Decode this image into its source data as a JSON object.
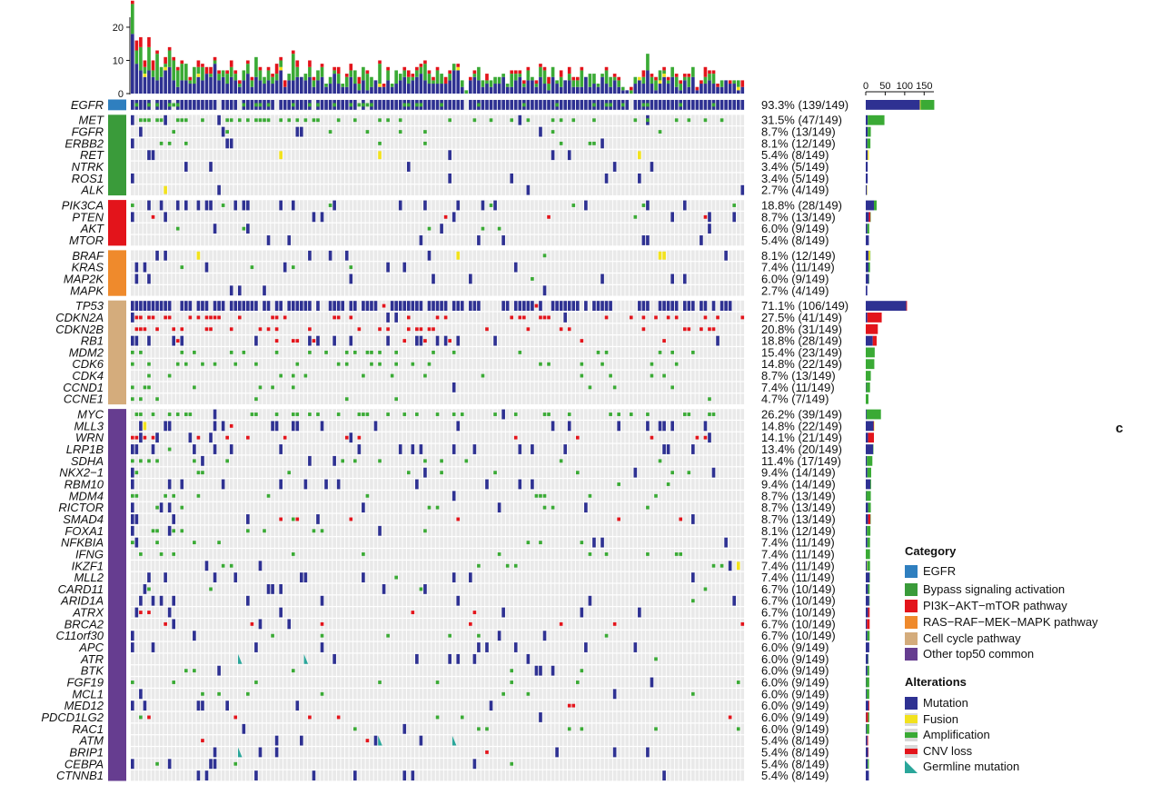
{
  "panel_letter": "c",
  "colors": {
    "mutation": "#2e3192",
    "fusion": "#f2e21d",
    "amplification": "#3aaa35",
    "cnv_loss": "#e3141b",
    "germline": "#2aa69a",
    "background_cell": "#e9e9e9",
    "cat_egfr": "#2f7fbf",
    "cat_bypass": "#3a9b3a",
    "cat_pi3k": "#e3141b",
    "cat_ras": "#ef8a2c",
    "cat_cell": "#d4ac7c",
    "cat_other": "#663d90"
  },
  "legend": {
    "category_title": "Category",
    "categories": [
      {
        "label": "EGFR",
        "color": "#2f7fbf"
      },
      {
        "label": "Bypass signaling activation",
        "color": "#3a9b3a"
      },
      {
        "label": "PI3K−AKT−mTOR pathway",
        "color": "#e3141b"
      },
      {
        "label": "RAS−RAF−MEK−MAPK pathway",
        "color": "#ef8a2c"
      },
      {
        "label": "Cell cycle pathway",
        "color": "#d4ac7c"
      },
      {
        "label": "Other top50 common",
        "color": "#663d90"
      }
    ],
    "alterations_title": "Alterations",
    "alterations": [
      {
        "label": "Mutation",
        "icon": "mutation-swatch"
      },
      {
        "label": "Fusion",
        "icon": "fusion-swatch"
      },
      {
        "label": "Amplification",
        "icon": "amplification-swatch"
      },
      {
        "label": "CNV loss",
        "icon": "cnv-loss-swatch"
      },
      {
        "label": "Germline mutation",
        "icon": "germline-swatch"
      }
    ]
  },
  "chart_data": {
    "type": "heatmap",
    "n_samples": 149,
    "top_axis": {
      "ticks": [
        0,
        10,
        20
      ],
      "ylim": [
        0,
        23
      ]
    },
    "side_axis": {
      "ticks": [
        0,
        50,
        100,
        150
      ],
      "xlim": [
        0,
        175
      ]
    },
    "groups": [
      {
        "name": "EGFR",
        "category_color": "#2f7fbf",
        "genes": [
          {
            "gene": "EGFR",
            "pct": "93.3% (139/149)",
            "count": 139,
            "mutation": 139,
            "amplification": 35,
            "fusion": 2,
            "cnv_loss": 0,
            "germline": 0
          }
        ]
      },
      {
        "name": "Bypass signaling activation",
        "category_color": "#3a9b3a",
        "genes": [
          {
            "gene": "MET",
            "pct": "31.5% (47/149)",
            "count": 47,
            "mutation": 5,
            "amplification": 43,
            "fusion": 0,
            "cnv_loss": 0,
            "germline": 0
          },
          {
            "gene": "FGFR",
            "pct": "8.7% (13/149)",
            "count": 13,
            "mutation": 5,
            "amplification": 8,
            "fusion": 0,
            "cnv_loss": 0,
            "germline": 0
          },
          {
            "gene": "ERBB2",
            "pct": "8.1% (12/149)",
            "count": 12,
            "mutation": 4,
            "amplification": 8,
            "fusion": 0,
            "cnv_loss": 0,
            "germline": 0
          },
          {
            "gene": "RET",
            "pct": "5.4% (8/149)",
            "count": 8,
            "mutation": 5,
            "amplification": 0,
            "fusion": 3,
            "cnv_loss": 0,
            "germline": 0
          },
          {
            "gene": "NTRK",
            "pct": "3.4% (5/149)",
            "count": 5,
            "mutation": 5,
            "amplification": 0,
            "fusion": 0,
            "cnv_loss": 0,
            "germline": 0
          },
          {
            "gene": "ROS1",
            "pct": "3.4% (5/149)",
            "count": 5,
            "mutation": 5,
            "amplification": 0,
            "fusion": 0,
            "cnv_loss": 0,
            "germline": 0
          },
          {
            "gene": "ALK",
            "pct": "2.7% (4/149)",
            "count": 4,
            "mutation": 3,
            "amplification": 0,
            "fusion": 1,
            "cnv_loss": 0,
            "germline": 0
          }
        ]
      },
      {
        "name": "PI3K−AKT−mTOR pathway",
        "category_color": "#e3141b",
        "genes": [
          {
            "gene": "PIK3CA",
            "pct": "18.8% (28/149)",
            "count": 28,
            "mutation": 21,
            "amplification": 7,
            "fusion": 0,
            "cnv_loss": 0,
            "germline": 0
          },
          {
            "gene": "PTEN",
            "pct": "8.7% (13/149)",
            "count": 13,
            "mutation": 8,
            "amplification": 1,
            "fusion": 0,
            "cnv_loss": 4,
            "germline": 0
          },
          {
            "gene": "AKT",
            "pct": "6.0% (9/149)",
            "count": 9,
            "mutation": 4,
            "amplification": 5,
            "fusion": 0,
            "cnv_loss": 0,
            "germline": 0
          },
          {
            "gene": "MTOR",
            "pct": "5.4% (8/149)",
            "count": 8,
            "mutation": 8,
            "amplification": 0,
            "fusion": 0,
            "cnv_loss": 0,
            "germline": 0
          }
        ]
      },
      {
        "name": "RAS−RAF−MEK−MAPK pathway",
        "category_color": "#ef8a2c",
        "genes": [
          {
            "gene": "BRAF",
            "pct": "8.1% (12/149)",
            "count": 12,
            "mutation": 7,
            "amplification": 1,
            "fusion": 4,
            "cnv_loss": 0,
            "germline": 0
          },
          {
            "gene": "KRAS",
            "pct": "7.4% (11/149)",
            "count": 11,
            "mutation": 7,
            "amplification": 4,
            "fusion": 0,
            "cnv_loss": 0,
            "germline": 0
          },
          {
            "gene": "MAP2K",
            "pct": "6.0% (9/149)",
            "count": 9,
            "mutation": 8,
            "amplification": 1,
            "fusion": 0,
            "cnv_loss": 0,
            "germline": 0
          },
          {
            "gene": "MAPK",
            "pct": "2.7% (4/149)",
            "count": 4,
            "mutation": 4,
            "amplification": 0,
            "fusion": 0,
            "cnv_loss": 0,
            "germline": 0
          }
        ]
      },
      {
        "name": "Cell cycle pathway",
        "category_color": "#d4ac7c",
        "genes": [
          {
            "gene": "TP53",
            "pct": "71.1% (106/149)",
            "count": 106,
            "mutation": 104,
            "amplification": 0,
            "fusion": 0,
            "cnv_loss": 2,
            "germline": 0
          },
          {
            "gene": "CDKN2A",
            "pct": "27.5% (41/149)",
            "count": 41,
            "mutation": 4,
            "amplification": 0,
            "fusion": 0,
            "cnv_loss": 37,
            "germline": 0
          },
          {
            "gene": "CDKN2B",
            "pct": "20.8% (31/149)",
            "count": 31,
            "mutation": 0,
            "amplification": 0,
            "fusion": 0,
            "cnv_loss": 31,
            "germline": 0
          },
          {
            "gene": "RB1",
            "pct": "18.8% (28/149)",
            "count": 28,
            "mutation": 18,
            "amplification": 0,
            "fusion": 0,
            "cnv_loss": 10,
            "germline": 0
          },
          {
            "gene": "MDM2",
            "pct": "15.4% (23/149)",
            "count": 23,
            "mutation": 0,
            "amplification": 23,
            "fusion": 0,
            "cnv_loss": 0,
            "germline": 0
          },
          {
            "gene": "CDK6",
            "pct": "14.8% (22/149)",
            "count": 22,
            "mutation": 0,
            "amplification": 22,
            "fusion": 0,
            "cnv_loss": 0,
            "germline": 0
          },
          {
            "gene": "CDK4",
            "pct": "8.7% (13/149)",
            "count": 13,
            "mutation": 0,
            "amplification": 13,
            "fusion": 0,
            "cnv_loss": 0,
            "germline": 0
          },
          {
            "gene": "CCND1",
            "pct": "7.4% (11/149)",
            "count": 11,
            "mutation": 1,
            "amplification": 10,
            "fusion": 0,
            "cnv_loss": 0,
            "germline": 0
          },
          {
            "gene": "CCNE1",
            "pct": "4.7% (7/149)",
            "count": 7,
            "mutation": 0,
            "amplification": 7,
            "fusion": 0,
            "cnv_loss": 0,
            "germline": 0
          }
        ]
      },
      {
        "name": "Other top50 common",
        "category_color": "#663d90",
        "genes": [
          {
            "gene": "MYC",
            "pct": "26.2% (39/149)",
            "count": 39,
            "mutation": 2,
            "amplification": 37,
            "fusion": 0,
            "cnv_loss": 0,
            "germline": 0
          },
          {
            "gene": "MLL3",
            "pct": "14.8% (22/149)",
            "count": 22,
            "mutation": 20,
            "amplification": 0,
            "fusion": 1,
            "cnv_loss": 1,
            "germline": 0
          },
          {
            "gene": "WRN",
            "pct": "14.1% (21/149)",
            "count": 21,
            "mutation": 6,
            "amplification": 0,
            "fusion": 0,
            "cnv_loss": 15,
            "germline": 0
          },
          {
            "gene": "LRP1B",
            "pct": "13.4% (20/149)",
            "count": 20,
            "mutation": 19,
            "amplification": 1,
            "fusion": 0,
            "cnv_loss": 0,
            "germline": 0
          },
          {
            "gene": "SDHA",
            "pct": "11.4% (17/149)",
            "count": 17,
            "mutation": 3,
            "amplification": 14,
            "fusion": 0,
            "cnv_loss": 0,
            "germline": 0
          },
          {
            "gene": "NKX2−1",
            "pct": "9.4% (14/149)",
            "count": 14,
            "mutation": 4,
            "amplification": 10,
            "fusion": 0,
            "cnv_loss": 0,
            "germline": 0
          },
          {
            "gene": "RBM10",
            "pct": "9.4% (14/149)",
            "count": 14,
            "mutation": 12,
            "amplification": 2,
            "fusion": 0,
            "cnv_loss": 0,
            "germline": 0
          },
          {
            "gene": "MDM4",
            "pct": "8.7% (13/149)",
            "count": 13,
            "mutation": 1,
            "amplification": 12,
            "fusion": 0,
            "cnv_loss": 0,
            "germline": 0
          },
          {
            "gene": "RICTOR",
            "pct": "8.7% (13/149)",
            "count": 13,
            "mutation": 6,
            "amplification": 7,
            "fusion": 0,
            "cnv_loss": 0,
            "germline": 0
          },
          {
            "gene": "SMAD4",
            "pct": "8.7% (13/149)",
            "count": 13,
            "mutation": 6,
            "amplification": 1,
            "fusion": 0,
            "cnv_loss": 6,
            "germline": 0
          },
          {
            "gene": "FOXA1",
            "pct": "8.1% (12/149)",
            "count": 12,
            "mutation": 3,
            "amplification": 9,
            "fusion": 0,
            "cnv_loss": 0,
            "germline": 0
          },
          {
            "gene": "NFKBIA",
            "pct": "7.4% (11/149)",
            "count": 11,
            "mutation": 4,
            "amplification": 7,
            "fusion": 0,
            "cnv_loss": 0,
            "germline": 0
          },
          {
            "gene": "IFNG",
            "pct": "7.4% (11/149)",
            "count": 11,
            "mutation": 0,
            "amplification": 11,
            "fusion": 0,
            "cnv_loss": 0,
            "germline": 0
          },
          {
            "gene": "IKZF1",
            "pct": "7.4% (11/149)",
            "count": 11,
            "mutation": 3,
            "amplification": 7,
            "fusion": 1,
            "cnv_loss": 0,
            "germline": 0
          },
          {
            "gene": "MLL2",
            "pct": "7.4% (11/149)",
            "count": 11,
            "mutation": 10,
            "amplification": 1,
            "fusion": 0,
            "cnv_loss": 0,
            "germline": 0
          },
          {
            "gene": "CARD11",
            "pct": "6.7% (10/149)",
            "count": 10,
            "mutation": 6,
            "amplification": 4,
            "fusion": 0,
            "cnv_loss": 0,
            "germline": 0
          },
          {
            "gene": "ARID1A",
            "pct": "6.7% (10/149)",
            "count": 10,
            "mutation": 9,
            "amplification": 1,
            "fusion": 0,
            "cnv_loss": 0,
            "germline": 0
          },
          {
            "gene": "ATRX",
            "pct": "6.7% (10/149)",
            "count": 10,
            "mutation": 6,
            "amplification": 0,
            "fusion": 0,
            "cnv_loss": 4,
            "germline": 0
          },
          {
            "gene": "BRCA2",
            "pct": "6.7% (10/149)",
            "count": 10,
            "mutation": 3,
            "amplification": 0,
            "fusion": 0,
            "cnv_loss": 7,
            "germline": 0
          },
          {
            "gene": "C11orf30",
            "pct": "6.7% (10/149)",
            "count": 10,
            "mutation": 4,
            "amplification": 6,
            "fusion": 0,
            "cnv_loss": 0,
            "germline": 0
          },
          {
            "gene": "APC",
            "pct": "6.0% (9/149)",
            "count": 9,
            "mutation": 9,
            "amplification": 0,
            "fusion": 0,
            "cnv_loss": 0,
            "germline": 0
          },
          {
            "gene": "ATR",
            "pct": "6.0% (9/149)",
            "count": 9,
            "mutation": 6,
            "amplification": 1,
            "fusion": 0,
            "cnv_loss": 0,
            "germline": 2
          },
          {
            "gene": "BTK",
            "pct": "6.0% (9/149)",
            "count": 9,
            "mutation": 4,
            "amplification": 5,
            "fusion": 0,
            "cnv_loss": 0,
            "germline": 0
          },
          {
            "gene": "FGF19",
            "pct": "6.0% (9/149)",
            "count": 9,
            "mutation": 1,
            "amplification": 8,
            "fusion": 0,
            "cnv_loss": 0,
            "germline": 0
          },
          {
            "gene": "MCL1",
            "pct": "6.0% (9/149)",
            "count": 9,
            "mutation": 2,
            "amplification": 7,
            "fusion": 0,
            "cnv_loss": 0,
            "germline": 0
          },
          {
            "gene": "MED12",
            "pct": "6.0% (9/149)",
            "count": 9,
            "mutation": 7,
            "amplification": 0,
            "fusion": 0,
            "cnv_loss": 2,
            "germline": 0
          },
          {
            "gene": "PDCD1LG2",
            "pct": "6.0% (9/149)",
            "count": 9,
            "mutation": 1,
            "amplification": 3,
            "fusion": 0,
            "cnv_loss": 5,
            "germline": 0
          },
          {
            "gene": "RAC1",
            "pct": "6.0% (9/149)",
            "count": 9,
            "mutation": 2,
            "amplification": 7,
            "fusion": 0,
            "cnv_loss": 0,
            "germline": 0
          },
          {
            "gene": "ATM",
            "pct": "5.4% (8/149)",
            "count": 8,
            "mutation": 4,
            "amplification": 0,
            "fusion": 0,
            "cnv_loss": 2,
            "germline": 2
          },
          {
            "gene": "BRIP1",
            "pct": "5.4% (8/149)",
            "count": 8,
            "mutation": 6,
            "amplification": 0,
            "fusion": 0,
            "cnv_loss": 1,
            "germline": 1
          },
          {
            "gene": "CEBPA",
            "pct": "5.4% (8/149)",
            "count": 8,
            "mutation": 5,
            "amplification": 3,
            "fusion": 0,
            "cnv_loss": 0,
            "germline": 0
          },
          {
            "gene": "CTNNB1",
            "pct": "5.4% (8/149)",
            "count": 8,
            "mutation": 8,
            "amplification": 0,
            "fusion": 0,
            "cnv_loss": 0,
            "germline": 0
          }
        ]
      }
    ]
  }
}
